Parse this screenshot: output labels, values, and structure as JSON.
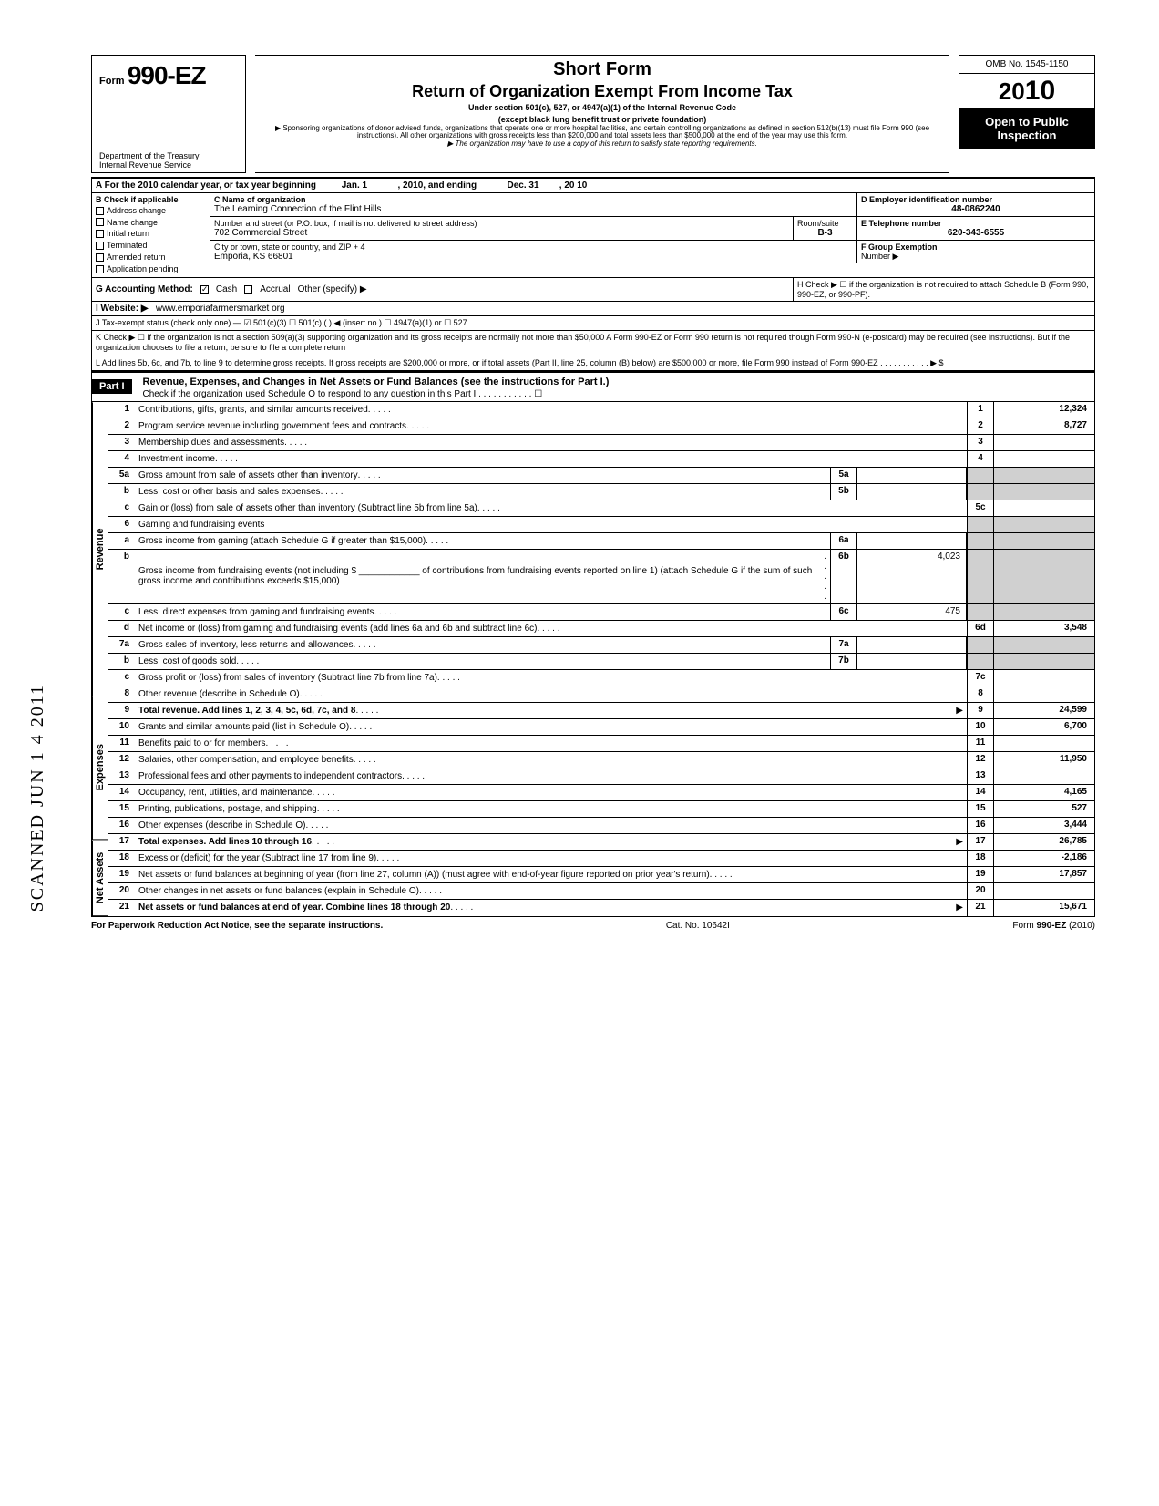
{
  "form": {
    "prefix": "Form",
    "number": "990-EZ",
    "dept1": "Department of the Treasury",
    "dept2": "Internal Revenue Service"
  },
  "title": {
    "l1": "Short Form",
    "l2": "Return of Organization Exempt From Income Tax",
    "l3": "Under section 501(c), 527, or 4947(a)(1) of the Internal Revenue Code",
    "l4": "(except black lung benefit trust or private foundation)",
    "l5": "▶ Sponsoring organizations of donor advised funds, organizations that operate one or more hospital facilities, and certain controlling organizations as defined in section 512(b)(13) must file Form 990 (see instructions). All other organizations with gross receipts less than $200,000 and total assets less than $500,000 at the end of the year may use this form.",
    "l6": "▶ The organization may have to use a copy of this return to satisfy state reporting requirements."
  },
  "right": {
    "omb": "OMB No. 1545-1150",
    "year_prefix": "20",
    "year_big": "10",
    "open": "Open to Public Inspection"
  },
  "lineA": {
    "text": "A  For the 2010 calendar year, or tax year beginning",
    "begin": "Jan. 1",
    "mid": ", 2010, and ending",
    "end_m": "Dec. 31",
    "end_y": ", 20   10"
  },
  "blockB": {
    "label": "B  Check if applicable",
    "opts": [
      "Address change",
      "Name change",
      "Initial return",
      "Terminated",
      "Amended return",
      "Application pending"
    ]
  },
  "blockC": {
    "c_label": "C  Name of organization",
    "c_val": "The Learning Connection of the Flint Hills",
    "addr_label": "Number and street (or P.O. box, if mail is not delivered to street address)",
    "addr_val": "702 Commercial Street",
    "room_label": "Room/suite",
    "room_val": "B-3",
    "city_label": "City or town, state or country, and ZIP + 4",
    "city_val": "Emporia, KS 66801"
  },
  "blockD": {
    "label": "D Employer identification number",
    "val": "48-0862240"
  },
  "blockE": {
    "label": "E  Telephone number",
    "val": "620-343-6555"
  },
  "blockF": {
    "label": "F  Group Exemption",
    "label2": "Number ▶"
  },
  "lineG": "G  Accounting Method:",
  "g_opts": {
    "cash": "Cash",
    "accrual": "Accrual",
    "other": "Other (specify) ▶"
  },
  "lineH": "H  Check ▶  ☐  if the organization is not required to attach Schedule B (Form 990, 990-EZ, or 990-PF).",
  "lineI": {
    "label": "I   Website: ▶",
    "val": "www.emporiafarmersmarket org"
  },
  "lineJ": "J  Tax-exempt status (check only one) —  ☑ 501(c)(3)   ☐ 501(c) (      )  ◀ (insert no.)  ☐ 4947(a)(1) or    ☐ 527",
  "lineK": "K  Check ▶  ☐   if the organization is not a section 509(a)(3) supporting organization and its gross receipts are normally not more than $50,000   A Form 990-EZ or Form 990 return is not required though Form 990-N (e-postcard) may be required (see instructions). But if the organization chooses to file a return, be sure to file a complete return",
  "lineL": "L  Add lines 5b, 6c, and 7b, to line 9 to determine gross receipts. If gross receipts are $200,000 or more, or if total assets (Part II, line 25, column (B) below) are $500,000 or more, file Form 990 instead of Form 990-EZ   .   .   .   .   .   .   .   .   .   .   .   ▶  $",
  "part1": {
    "hdr": "Part I",
    "title": "Revenue, Expenses, and Changes in Net Assets or Fund Balances (see the instructions for Part I.)",
    "sub": "Check if the organization used Schedule O to respond to any question in this Part I   .   .   .   .   .   .   .   .   .   .   .   ☐"
  },
  "side": {
    "rev": "Revenue",
    "exp": "Expenses",
    "net": "Net Assets"
  },
  "scanned": "SCANNED JUN 1 4 2011",
  "rows": [
    {
      "n": "1",
      "d": "Contributions, gifts, grants, and similar amounts received",
      "en": "1",
      "ev": "12,324"
    },
    {
      "n": "2",
      "d": "Program service revenue including government fees and contracts",
      "en": "2",
      "ev": "8,727"
    },
    {
      "n": "3",
      "d": "Membership dues and assessments",
      "en": "3",
      "ev": ""
    },
    {
      "n": "4",
      "d": "Investment income",
      "en": "4",
      "ev": ""
    },
    {
      "n": "5a",
      "d": "Gross amount from sale of assets other than inventory",
      "mn": "5a",
      "mv": "",
      "shade": true
    },
    {
      "n": "b",
      "d": "Less: cost or other basis and sales expenses",
      "mn": "5b",
      "mv": "",
      "shade": true
    },
    {
      "n": "c",
      "d": "Gain or (loss) from sale of assets other than inventory (Subtract line 5b from line 5a)",
      "en": "5c",
      "ev": ""
    },
    {
      "n": "6",
      "d": "Gaming and fundraising events",
      "shade": true,
      "noline": true
    },
    {
      "n": "a",
      "d": "Gross income from gaming (attach Schedule G if greater than $15,000)",
      "mn": "6a",
      "mv": "",
      "shade": true
    },
    {
      "n": "b",
      "d": "Gross income from fundraising events (not including $ ____________ of contributions from fundraising events reported on line 1) (attach Schedule G if the sum of such gross income and contributions exceeds $15,000)",
      "mn": "6b",
      "mv": "4,023",
      "shade": true
    },
    {
      "n": "c",
      "d": "Less: direct expenses from gaming and fundraising events",
      "mn": "6c",
      "mv": "475",
      "shade": true
    },
    {
      "n": "d",
      "d": "Net income or (loss) from gaming and fundraising events (add lines 6a and 6b and subtract line 6c)",
      "en": "6d",
      "ev": "3,548"
    },
    {
      "n": "7a",
      "d": "Gross sales of inventory, less returns and allowances",
      "mn": "7a",
      "mv": "",
      "shade": true
    },
    {
      "n": "b",
      "d": "Less: cost of goods sold",
      "mn": "7b",
      "mv": "",
      "shade": true
    },
    {
      "n": "c",
      "d": "Gross profit or (loss) from sales of inventory (Subtract line 7b from line 7a)",
      "en": "7c",
      "ev": ""
    },
    {
      "n": "8",
      "d": "Other revenue (describe in Schedule O)",
      "en": "8",
      "ev": ""
    },
    {
      "n": "9",
      "d": "Total revenue. Add lines 1, 2, 3, 4, 5c, 6d, 7c, and 8",
      "en": "9",
      "ev": "24,599",
      "bold": true,
      "arrow": true
    },
    {
      "n": "10",
      "d": "Grants and similar amounts paid (list in Schedule O)",
      "en": "10",
      "ev": "6,700"
    },
    {
      "n": "11",
      "d": "Benefits paid to or for members",
      "en": "11",
      "ev": ""
    },
    {
      "n": "12",
      "d": "Salaries, other compensation, and employee benefits",
      "en": "12",
      "ev": "11,950"
    },
    {
      "n": "13",
      "d": "Professional fees and other payments to independent contractors",
      "en": "13",
      "ev": ""
    },
    {
      "n": "14",
      "d": "Occupancy, rent, utilities, and maintenance",
      "en": "14",
      "ev": "4,165"
    },
    {
      "n": "15",
      "d": "Printing, publications, postage, and shipping",
      "en": "15",
      "ev": "527"
    },
    {
      "n": "16",
      "d": "Other expenses (describe in Schedule O)",
      "en": "16",
      "ev": "3,444"
    },
    {
      "n": "17",
      "d": "Total expenses. Add lines 10 through 16",
      "en": "17",
      "ev": "26,785",
      "bold": true,
      "arrow": true
    },
    {
      "n": "18",
      "d": "Excess or (deficit) for the year (Subtract line 17 from line 9)",
      "en": "18",
      "ev": "-2,186"
    },
    {
      "n": "19",
      "d": "Net assets or fund balances at beginning of year (from line 27, column (A)) (must agree with end-of-year figure reported on prior year's return)",
      "en": "19",
      "ev": "17,857"
    },
    {
      "n": "20",
      "d": "Other changes in net assets or fund balances (explain in Schedule O)",
      "en": "20",
      "ev": ""
    },
    {
      "n": "21",
      "d": "Net assets or fund balances at end of year. Combine lines 18 through 20",
      "en": "21",
      "ev": "15,671",
      "bold": true,
      "arrow": true
    }
  ],
  "footer": {
    "left": "For Paperwork Reduction Act Notice, see the separate instructions.",
    "mid": "Cat. No. 10642I",
    "right": "Form 990-EZ  (2010)"
  },
  "colors": {
    "black": "#000000",
    "shade": "#d0d0d0",
    "white": "#ffffff"
  }
}
